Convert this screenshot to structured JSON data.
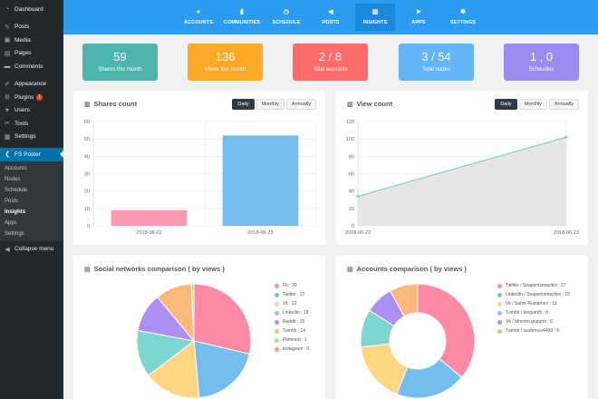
{
  "sidebar": {
    "items": [
      {
        "label": "Dashboard",
        "icon": "dashboard-icon",
        "glyph": "◔"
      },
      {
        "label": "Posts",
        "icon": "pin-icon",
        "glyph": "✎"
      },
      {
        "label": "Media",
        "icon": "media-icon",
        "glyph": "▣"
      },
      {
        "label": "Pages",
        "icon": "pages-icon",
        "glyph": "▤"
      },
      {
        "label": "Comments",
        "icon": "comment-icon",
        "glyph": "▬"
      },
      {
        "label": "Appearance",
        "icon": "brush-icon",
        "glyph": "✐"
      },
      {
        "label": "Plugins",
        "icon": "plugin-icon",
        "glyph": "⚙",
        "badge": "1"
      },
      {
        "label": "Users",
        "icon": "user-icon",
        "glyph": "●"
      },
      {
        "label": "Tools",
        "icon": "wrench-icon",
        "glyph": "✂"
      },
      {
        "label": "Settings",
        "icon": "settings-icon",
        "glyph": "▦"
      },
      {
        "label": "FS Poster",
        "icon": "share-icon",
        "glyph": "❮"
      }
    ],
    "submenu": [
      "Accounts",
      "Nodes",
      "Schedule",
      "Posts",
      "Insights",
      "Apps",
      "Settings"
    ],
    "submenu_current": "Insights",
    "collapse": {
      "label": "Collapse menu",
      "glyph": "◀"
    }
  },
  "topnav": {
    "items": [
      {
        "label": "ACCOUNTS",
        "glyph": "●"
      },
      {
        "label": "COMMUNITIES",
        "glyph": "▮"
      },
      {
        "label": "SCHEDULE",
        "glyph": "◷"
      },
      {
        "label": "POSTS",
        "glyph": "◀"
      },
      {
        "label": "INSIGHTS",
        "glyph": "▥"
      },
      {
        "label": "APPS",
        "glyph": "➤"
      },
      {
        "label": "SETTINGS",
        "glyph": "✱"
      }
    ],
    "active": "INSIGHTS"
  },
  "stats": [
    {
      "value": "59",
      "label": "Shares this month",
      "color": "#4db6ac"
    },
    {
      "value": "136",
      "label": "Views this month",
      "color": "#ffa726"
    },
    {
      "value": "2 / 8",
      "label": "Total accounts",
      "color": "#ff6b6b"
    },
    {
      "value": "3 / 54",
      "label": "Total nodes",
      "color": "#64b5f6"
    },
    {
      "value": "1 , 0",
      "label": "Scheudles",
      "color": "#9c8cf0"
    }
  ],
  "panels": {
    "shares": {
      "title": "Shares count",
      "glyph": "▥",
      "buttons": [
        "Daily",
        "Monthly",
        "Annually"
      ],
      "active": "Daily"
    },
    "views": {
      "title": "View count",
      "glyph": "▥",
      "buttons": [
        "Daily",
        "Monthly",
        "Annually"
      ],
      "active": "Daily"
    },
    "social": {
      "title": "Social networks comparison ( by views )",
      "glyph": "▤"
    },
    "accounts": {
      "title": "Accounts comparison ( by views )",
      "glyph": "▤"
    }
  },
  "chart_data": [
    {
      "type": "bar",
      "categories": [
        "2018-06-22",
        "2018-06-23"
      ],
      "values": [
        9,
        52
      ],
      "colors": [
        "#ff99b1",
        "#74bdef"
      ],
      "ylim": [
        0,
        60
      ],
      "yticks": [
        0,
        10,
        20,
        30,
        40,
        50,
        60
      ]
    },
    {
      "type": "area",
      "categories": [
        "2018-06-22",
        "2018-06-23"
      ],
      "values": [
        34,
        102
      ],
      "ylim": [
        0,
        120
      ],
      "yticks": [
        0,
        20,
        40,
        60,
        80,
        100,
        120
      ],
      "line_color": "#7fd3c7",
      "fill_color": "#e6e6e6"
    },
    {
      "type": "pie",
      "legend": [
        {
          "label": "Fb : 39",
          "value": 39,
          "color": "#ff8aa5"
        },
        {
          "label": "Twitter : 27",
          "value": 27,
          "color": "#74bdef"
        },
        {
          "label": "Vk : 22",
          "value": 22,
          "color": "#ffd782"
        },
        {
          "label": "Linkedin : 18",
          "value": 18,
          "color": "#7dd6cf"
        },
        {
          "label": "Reddit : 15",
          "value": 15,
          "color": "#ac8ff0"
        },
        {
          "label": "Tumblr : 14",
          "value": 14,
          "color": "#ffb97a"
        },
        {
          "label": "Pinterest : 1",
          "value": 1,
          "color": "#a5e38b"
        },
        {
          "label": "Instagram : 0",
          "value": 0,
          "color": "#ff9c6a"
        }
      ]
    },
    {
      "type": "pie",
      "donut": true,
      "legend": [
        {
          "label": "Twitter / SoapenIsmayilov : 27",
          "value": 27,
          "color": "#ff8aa5"
        },
        {
          "label": "LinkedIn / SoapenIsmayilov : 15",
          "value": 15,
          "color": "#74bdef"
        },
        {
          "label": "Vk / Samir Rustamov : 13",
          "value": 13,
          "color": "#ffd782"
        },
        {
          "label": "Tumblr / blogumt5 : 8",
          "value": 8,
          "color": "#7dd6cf"
        },
        {
          "label": "Vk / Mmmm gruppm : 6",
          "value": 6,
          "color": "#ac8ff0"
        },
        {
          "label": "Tumblr / iusdemov4499 : 6",
          "value": 6,
          "color": "#ffb97a"
        }
      ]
    }
  ]
}
